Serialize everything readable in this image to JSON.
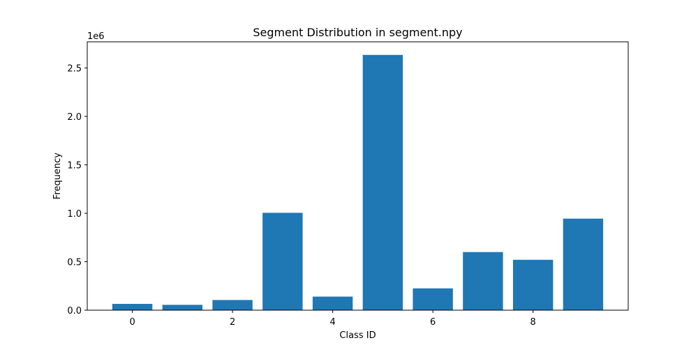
{
  "chart_data": {
    "type": "bar",
    "title": "Segment Distribution in segment.npy",
    "xlabel": "Class ID",
    "ylabel": "Frequency",
    "y_offset_label": "1e6",
    "categories": [
      0,
      1,
      2,
      3,
      4,
      5,
      6,
      7,
      8,
      9
    ],
    "values": [
      65000,
      55000,
      105000,
      1005000,
      140000,
      2635000,
      225000,
      600000,
      520000,
      945000
    ],
    "xlim": [
      -0.9,
      9.9
    ],
    "ylim": [
      0,
      2770000
    ],
    "x_ticks": [
      0,
      2,
      4,
      6,
      8
    ],
    "x_tick_labels": [
      "0",
      "2",
      "4",
      "6",
      "8"
    ],
    "y_ticks": [
      0,
      500000,
      1000000,
      1500000,
      2000000,
      2500000
    ],
    "y_tick_labels": [
      "0.0",
      "0.5",
      "1.0",
      "1.5",
      "2.0",
      "2.5"
    ],
    "bar_color": "#1f77b4",
    "bar_width": 0.8,
    "grid": false,
    "legend": "none"
  }
}
